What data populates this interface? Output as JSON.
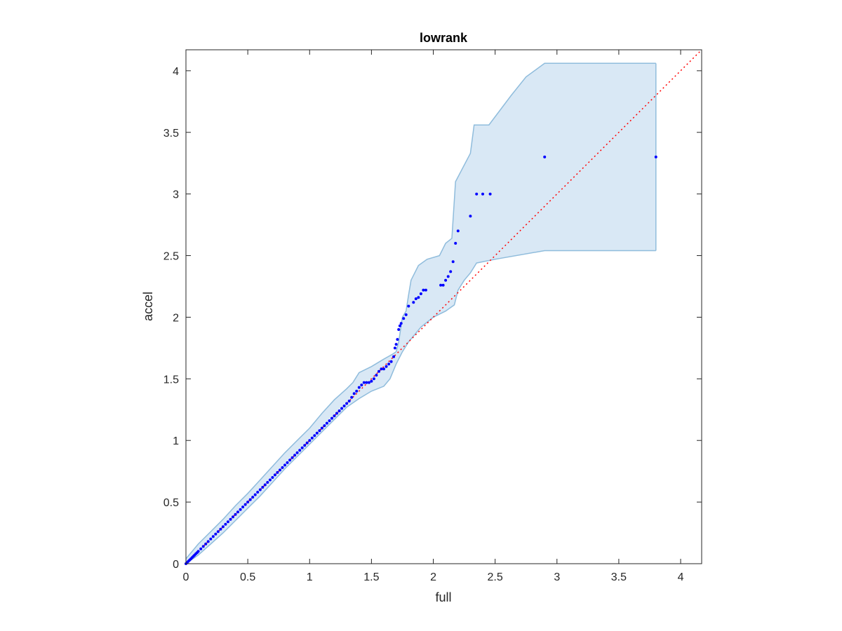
{
  "chart_data": {
    "type": "scatter",
    "title": "lowrank",
    "xlabel": "full",
    "ylabel": "accel",
    "xlim": [
      0,
      4.17
    ],
    "ylim": [
      0,
      4.17
    ],
    "xticks": [
      0,
      0.5,
      1,
      1.5,
      2,
      2.5,
      3,
      3.5,
      4
    ],
    "yticks": [
      0,
      0.5,
      1,
      1.5,
      2,
      2.5,
      3,
      3.5,
      4
    ],
    "xtick_labels": [
      "0",
      "0.5",
      "1",
      "1.5",
      "2",
      "2.5",
      "3",
      "3.5",
      "4"
    ],
    "ytick_labels": [
      "0",
      "0.5",
      "1",
      "1.5",
      "2",
      "2.5",
      "3",
      "3.5",
      "4"
    ],
    "grid": false,
    "colors": {
      "points": "#0000ff",
      "reference_line": "#ff0000",
      "band_fill": "#d9e8f5",
      "band_edge": "#8fbcdc",
      "axes": "#262626"
    },
    "band": {
      "upper": [
        [
          0,
          0.04
        ],
        [
          0.1,
          0.16
        ],
        [
          0.2,
          0.26
        ],
        [
          0.3,
          0.36
        ],
        [
          0.4,
          0.47
        ],
        [
          0.5,
          0.57
        ],
        [
          0.6,
          0.68
        ],
        [
          0.7,
          0.79
        ],
        [
          0.8,
          0.9
        ],
        [
          0.9,
          1.0
        ],
        [
          1.0,
          1.1
        ],
        [
          1.1,
          1.22
        ],
        [
          1.2,
          1.33
        ],
        [
          1.3,
          1.42
        ],
        [
          1.35,
          1.47
        ],
        [
          1.4,
          1.55
        ],
        [
          1.5,
          1.6
        ],
        [
          1.6,
          1.66
        ],
        [
          1.67,
          1.7
        ],
        [
          1.7,
          1.72
        ],
        [
          1.72,
          1.8
        ],
        [
          1.75,
          2.0
        ],
        [
          1.78,
          2.05
        ],
        [
          1.8,
          2.18
        ],
        [
          1.82,
          2.3
        ],
        [
          1.88,
          2.42
        ],
        [
          1.95,
          2.47
        ],
        [
          2.05,
          2.5
        ],
        [
          2.1,
          2.6
        ],
        [
          2.15,
          2.64
        ],
        [
          2.18,
          3.1
        ],
        [
          2.3,
          3.33
        ],
        [
          2.33,
          3.56
        ],
        [
          2.45,
          3.56
        ],
        [
          2.63,
          3.8
        ],
        [
          2.75,
          3.95
        ],
        [
          2.9,
          4.06
        ],
        [
          3.8,
          4.06
        ]
      ],
      "lower": [
        [
          0,
          0
        ],
        [
          0.1,
          0.07
        ],
        [
          0.2,
          0.16
        ],
        [
          0.3,
          0.25
        ],
        [
          0.4,
          0.35
        ],
        [
          0.5,
          0.45
        ],
        [
          0.6,
          0.55
        ],
        [
          0.7,
          0.66
        ],
        [
          0.8,
          0.77
        ],
        [
          0.9,
          0.87
        ],
        [
          1.0,
          0.97
        ],
        [
          1.1,
          1.07
        ],
        [
          1.2,
          1.17
        ],
        [
          1.3,
          1.27
        ],
        [
          1.4,
          1.34
        ],
        [
          1.5,
          1.4
        ],
        [
          1.55,
          1.42
        ],
        [
          1.6,
          1.44
        ],
        [
          1.65,
          1.5
        ],
        [
          1.7,
          1.62
        ],
        [
          1.75,
          1.72
        ],
        [
          1.8,
          1.8
        ],
        [
          1.85,
          1.86
        ],
        [
          1.9,
          1.92
        ],
        [
          1.95,
          1.96
        ],
        [
          2.0,
          2.0
        ],
        [
          2.1,
          2.05
        ],
        [
          2.17,
          2.1
        ],
        [
          2.2,
          2.22
        ],
        [
          2.25,
          2.3
        ],
        [
          2.3,
          2.36
        ],
        [
          2.35,
          2.44
        ],
        [
          2.5,
          2.47
        ],
        [
          2.9,
          2.54
        ],
        [
          3.8,
          2.54
        ]
      ]
    },
    "reference_line": {
      "from": [
        0,
        0
      ],
      "to": [
        4.17,
        4.17
      ]
    },
    "points": [
      [
        0.0,
        0.0
      ],
      [
        0.01,
        0.01
      ],
      [
        0.02,
        0.02
      ],
      [
        0.03,
        0.03
      ],
      [
        0.04,
        0.04
      ],
      [
        0.05,
        0.05
      ],
      [
        0.06,
        0.06
      ],
      [
        0.07,
        0.07
      ],
      [
        0.08,
        0.08
      ],
      [
        0.09,
        0.09
      ],
      [
        0.1,
        0.1
      ],
      [
        0.12,
        0.12
      ],
      [
        0.14,
        0.14
      ],
      [
        0.16,
        0.16
      ],
      [
        0.18,
        0.18
      ],
      [
        0.2,
        0.2
      ],
      [
        0.22,
        0.22
      ],
      [
        0.24,
        0.24
      ],
      [
        0.26,
        0.26
      ],
      [
        0.28,
        0.28
      ],
      [
        0.3,
        0.3
      ],
      [
        0.32,
        0.32
      ],
      [
        0.34,
        0.34
      ],
      [
        0.36,
        0.36
      ],
      [
        0.38,
        0.38
      ],
      [
        0.4,
        0.4
      ],
      [
        0.42,
        0.42
      ],
      [
        0.44,
        0.44
      ],
      [
        0.46,
        0.46
      ],
      [
        0.48,
        0.48
      ],
      [
        0.5,
        0.5
      ],
      [
        0.52,
        0.52
      ],
      [
        0.54,
        0.54
      ],
      [
        0.56,
        0.56
      ],
      [
        0.58,
        0.58
      ],
      [
        0.6,
        0.6
      ],
      [
        0.62,
        0.62
      ],
      [
        0.64,
        0.64
      ],
      [
        0.66,
        0.66
      ],
      [
        0.68,
        0.68
      ],
      [
        0.7,
        0.7
      ],
      [
        0.72,
        0.72
      ],
      [
        0.74,
        0.74
      ],
      [
        0.76,
        0.76
      ],
      [
        0.78,
        0.78
      ],
      [
        0.8,
        0.8
      ],
      [
        0.82,
        0.82
      ],
      [
        0.84,
        0.84
      ],
      [
        0.86,
        0.86
      ],
      [
        0.88,
        0.88
      ],
      [
        0.9,
        0.9
      ],
      [
        0.92,
        0.92
      ],
      [
        0.94,
        0.94
      ],
      [
        0.96,
        0.96
      ],
      [
        0.98,
        0.98
      ],
      [
        1.0,
        1.0
      ],
      [
        1.02,
        1.02
      ],
      [
        1.04,
        1.04
      ],
      [
        1.06,
        1.06
      ],
      [
        1.08,
        1.08
      ],
      [
        1.1,
        1.1
      ],
      [
        1.12,
        1.12
      ],
      [
        1.14,
        1.14
      ],
      [
        1.16,
        1.16
      ],
      [
        1.18,
        1.18
      ],
      [
        1.2,
        1.2
      ],
      [
        1.22,
        1.22
      ],
      [
        1.24,
        1.24
      ],
      [
        1.26,
        1.26
      ],
      [
        1.28,
        1.28
      ],
      [
        1.3,
        1.3
      ],
      [
        1.32,
        1.32
      ],
      [
        1.34,
        1.35
      ],
      [
        1.36,
        1.38
      ],
      [
        1.38,
        1.4
      ],
      [
        1.4,
        1.43
      ],
      [
        1.42,
        1.45
      ],
      [
        1.44,
        1.47
      ],
      [
        1.46,
        1.47
      ],
      [
        1.48,
        1.47
      ],
      [
        1.5,
        1.48
      ],
      [
        1.52,
        1.5
      ],
      [
        1.54,
        1.53
      ],
      [
        1.56,
        1.56
      ],
      [
        1.58,
        1.58
      ],
      [
        1.6,
        1.58
      ],
      [
        1.62,
        1.6
      ],
      [
        1.64,
        1.62
      ],
      [
        1.66,
        1.64
      ],
      [
        1.68,
        1.68
      ],
      [
        1.69,
        1.75
      ],
      [
        1.7,
        1.78
      ],
      [
        1.71,
        1.82
      ],
      [
        1.72,
        1.9
      ],
      [
        1.73,
        1.93
      ],
      [
        1.74,
        1.95
      ],
      [
        1.76,
        1.99
      ],
      [
        1.78,
        2.02
      ],
      [
        1.8,
        2.09
      ],
      [
        1.84,
        2.12
      ],
      [
        1.86,
        2.15
      ],
      [
        1.88,
        2.16
      ],
      [
        1.9,
        2.19
      ],
      [
        1.92,
        2.22
      ],
      [
        1.94,
        2.22
      ],
      [
        2.06,
        2.26
      ],
      [
        2.08,
        2.26
      ],
      [
        2.1,
        2.3
      ],
      [
        2.12,
        2.33
      ],
      [
        2.14,
        2.37
      ],
      [
        2.16,
        2.45
      ],
      [
        2.18,
        2.6
      ],
      [
        2.2,
        2.7
      ],
      [
        2.3,
        2.82
      ],
      [
        2.35,
        3.0
      ],
      [
        2.4,
        3.0
      ],
      [
        2.46,
        3.0
      ],
      [
        2.9,
        3.3
      ],
      [
        3.8,
        3.3
      ]
    ]
  }
}
